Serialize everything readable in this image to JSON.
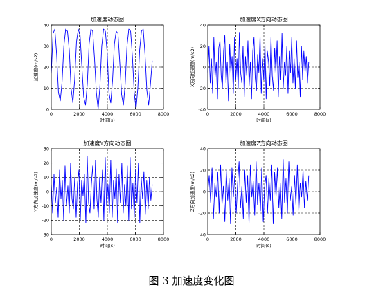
{
  "caption": "图 3  加速度变化图",
  "colors": {
    "line": "#0000ff",
    "axes": "#000000",
    "grid": "#000000"
  },
  "chart_data": [
    {
      "type": "line",
      "title": "加速度动态图",
      "xlabel": "时间(s)",
      "ylabel": "加速度(m/s2)",
      "xlim": [
        0,
        8000
      ],
      "ylim": [
        0,
        40
      ],
      "xticks": [
        0,
        2000,
        4000,
        6000,
        8000
      ],
      "yticks": [
        0,
        10,
        20,
        30,
        40
      ],
      "grid": true,
      "x_end": 7200,
      "series": [
        {
          "values": [
            17,
            36,
            38,
            26,
            8,
            4,
            13,
            30,
            38,
            37,
            28,
            10,
            3,
            14,
            32,
            38,
            35,
            20,
            6,
            2,
            12,
            31,
            38,
            37,
            24,
            8,
            0,
            11,
            30,
            38,
            37,
            27,
            8,
            3,
            14,
            31,
            37,
            36,
            22,
            7,
            2,
            12,
            30,
            38,
            37,
            25,
            8,
            0,
            10,
            28,
            37,
            38,
            26,
            9,
            2,
            12,
            23
          ]
        }
      ]
    },
    {
      "type": "line",
      "title": "加速度X方向动态图",
      "xlabel": "时间(s)",
      "ylabel": "X方向加速度(m/s2)",
      "xlim": [
        0,
        8000
      ],
      "ylim": [
        -40,
        40
      ],
      "xticks": [
        0,
        2000,
        4000,
        6000,
        8000
      ],
      "yticks": [
        -40,
        -20,
        0,
        20,
        40
      ],
      "grid": true,
      "x_end": 7200,
      "series": [
        {
          "values": [
            -5,
            20,
            -15,
            8,
            -25,
            28,
            -10,
            5,
            -30,
            18,
            25,
            -8,
            -20,
            15,
            30,
            -15,
            5,
            -32,
            22,
            -5,
            10,
            -25,
            28,
            -12,
            8,
            -20,
            33,
            -5,
            -15,
            20,
            -28,
            10,
            -8,
            25,
            -18,
            5,
            -30,
            15,
            28,
            -10,
            -22,
            12,
            -5,
            30,
            -25,
            8,
            -12,
            22,
            -30,
            15,
            5,
            -18,
            28,
            -8,
            -22,
            18,
            -5,
            25,
            -28,
            10,
            -12,
            32,
            -20,
            5,
            -8,
            20,
            -25,
            15,
            -5,
            28,
            -15,
            8,
            -20,
            25,
            -10,
            5,
            -28,
            20,
            -12,
            15,
            -5,
            10,
            -15,
            5
          ]
        }
      ]
    },
    {
      "type": "line",
      "title": "加速度Y方向动态图",
      "xlabel": "时间(s)",
      "ylabel": "Y方向加速度(m/s2)",
      "xlim": [
        0,
        8000
      ],
      "ylim": [
        -30,
        30
      ],
      "xticks": [
        0,
        2000,
        4000,
        6000,
        8000
      ],
      "yticks": [
        -30,
        -20,
        -10,
        0,
        10,
        20,
        30
      ],
      "grid": true,
      "x_end": 7200,
      "series": [
        {
          "values": [
            5,
            -15,
            12,
            -8,
            3,
            -18,
            15,
            -5,
            8,
            -20,
            18,
            -10,
            4,
            -15,
            20,
            -5,
            -12,
            10,
            -18,
            6,
            15,
            -20,
            8,
            -3,
            12,
            -22,
            25,
            -8,
            -15,
            5,
            18,
            -12,
            22,
            -5,
            -18,
            10,
            -8,
            15,
            -20,
            24,
            -10,
            5,
            -15,
            22,
            -18,
            8,
            -5,
            16,
            -22,
            12,
            -8,
            20,
            -15,
            5,
            -10,
            18,
            -20,
            24,
            -12,
            6,
            -18,
            15,
            -8,
            20,
            -22,
            10,
            -5,
            14,
            -16,
            8,
            -12,
            10,
            -6,
            5
          ]
        }
      ]
    },
    {
      "type": "line",
      "title": "加速度Z方向动态图",
      "xlabel": "时间(s)",
      "ylabel": "Z方向加速度(m/s2)",
      "xlim": [
        0,
        8000
      ],
      "ylim": [
        -40,
        40
      ],
      "xticks": [
        0,
        2000,
        4000,
        6000,
        8000
      ],
      "yticks": [
        -40,
        -20,
        0,
        20,
        40
      ],
      "grid": true,
      "x_end": 7200,
      "series": [
        {
          "values": [
            0,
            15,
            -10,
            22,
            -25,
            8,
            -5,
            18,
            -20,
            25,
            -12,
            5,
            -28,
            20,
            -8,
            12,
            -30,
            22,
            -5,
            15,
            -20,
            8,
            28,
            -15,
            5,
            -25,
            20,
            -10,
            15,
            -30,
            25,
            -5,
            10,
            -22,
            28,
            -12,
            8,
            -18,
            22,
            -28,
            5,
            15,
            -20,
            12,
            -8,
            25,
            -30,
            18,
            -5,
            22,
            -15,
            8,
            -25,
            30,
            -10,
            12,
            -20,
            28,
            -8,
            5,
            -22,
            15,
            -12,
            25,
            -18,
            8,
            -5,
            20,
            -15,
            10,
            -8,
            15
          ]
        }
      ]
    }
  ]
}
